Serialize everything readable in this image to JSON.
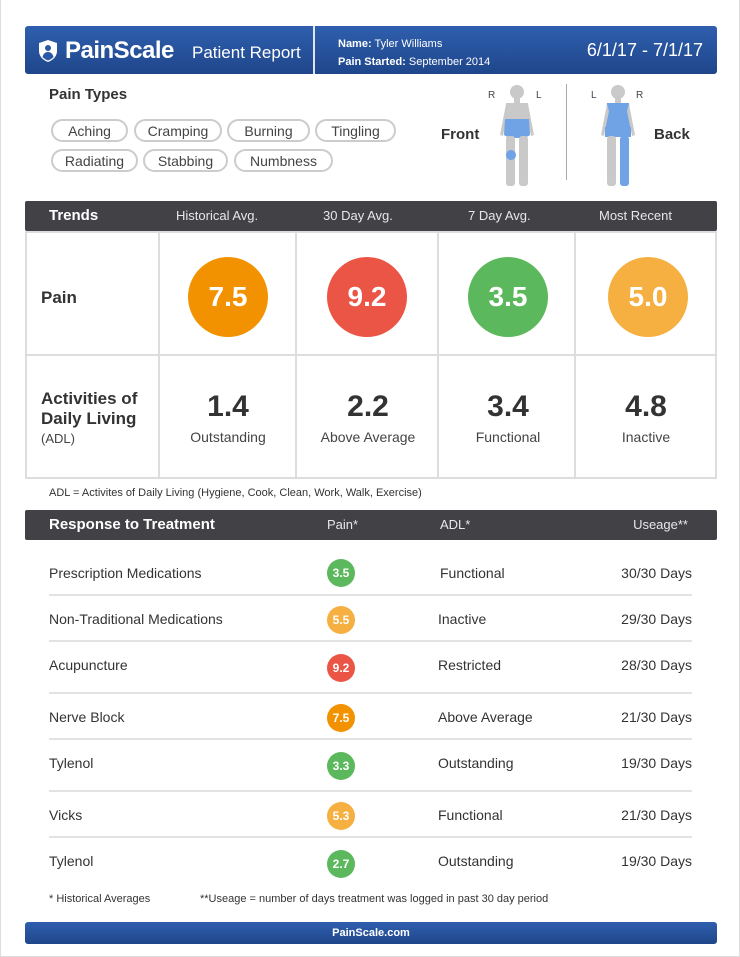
{
  "header": {
    "brand": "PainScale",
    "report_title": "Patient Report",
    "name_label": "Name:",
    "name_value": "Tyler Williams",
    "started_label": "Pain Started:",
    "started_value": "September 2014",
    "date_range": "6/1/17 - 7/1/17"
  },
  "pain_types": {
    "title": "Pain Types",
    "chips": [
      "Aching",
      "Cramping",
      "Burning",
      "Tingling",
      "Radiating",
      "Stabbing",
      "Numbness"
    ]
  },
  "body_map": {
    "front": {
      "title": "Front",
      "left_mark": "R",
      "right_mark": "L"
    },
    "back": {
      "title": "Back",
      "left_mark": "L",
      "right_mark": "R"
    }
  },
  "trends": {
    "title": "Trends",
    "columns": [
      "Historical Avg.",
      "30 Day Avg.",
      "7 Day Avg.",
      "Most Recent"
    ],
    "pain_label": "Pain",
    "pain_values": [
      {
        "value": "7.5",
        "color": "#f39200"
      },
      {
        "value": "9.2",
        "color": "#eb5545"
      },
      {
        "value": "3.5",
        "color": "#5cb85c"
      },
      {
        "value": "5.0",
        "color": "#f5b041"
      }
    ],
    "adl_label_line1": "Activities of",
    "adl_label_line2": "Daily Living",
    "adl_label_abbr": "(ADL)",
    "adl_values": [
      {
        "value": "1.4",
        "word": "Outstanding"
      },
      {
        "value": "2.2",
        "word": "Above Average"
      },
      {
        "value": "3.4",
        "word": "Functional"
      },
      {
        "value": "4.8",
        "word": "Inactive"
      }
    ],
    "adl_footnote": "ADL = Activites of Daily Living (Hygiene, Cook, Clean, Work, Walk, Exercise)"
  },
  "treatment": {
    "title": "Response to Treatment",
    "col_pain": "Pain*",
    "col_adl": "ADL*",
    "col_usage": "Useage**",
    "rows": [
      {
        "name": "Prescription Medications",
        "pain": "3.5",
        "color": "#5cb85c",
        "adl": "Functional",
        "usage": "30/30 Days"
      },
      {
        "name": "Non-Traditional Medications",
        "pain": "5.5",
        "color": "#f5b041",
        "adl": "Inactive",
        "usage": "29/30 Days"
      },
      {
        "name": "Acupuncture",
        "pain": "9.2",
        "color": "#eb5545",
        "adl": "Restricted",
        "usage": "28/30 Days"
      },
      {
        "name": "Nerve Block",
        "pain": "7.5",
        "color": "#f39200",
        "adl": "Above Average",
        "usage": "21/30 Days"
      },
      {
        "name": "Tylenol",
        "pain": "3.3",
        "color": "#5cb85c",
        "adl": "Outstanding",
        "usage": "19/30 Days"
      },
      {
        "name": "Vicks",
        "pain": "5.3",
        "color": "#f5b041",
        "adl": "Functional",
        "usage": "21/30 Days"
      },
      {
        "name": "Tylenol",
        "pain": "2.7",
        "color": "#5cb85c",
        "adl": "Outstanding",
        "usage": "19/30 Days"
      }
    ],
    "footnote_hist": "* Historical Averages",
    "footnote_usage": "**Useage = number of days treatment was logged in past 30 day period"
  },
  "footer": {
    "site": "PainScale.com"
  }
}
